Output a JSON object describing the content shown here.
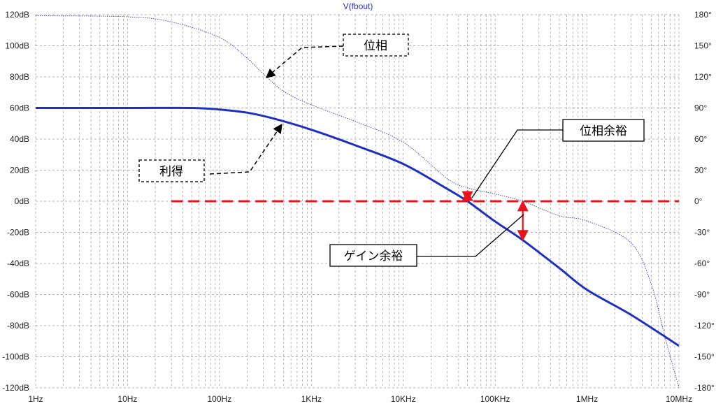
{
  "chart_data": {
    "type": "line",
    "title": "V(fbout)",
    "x_scale": "log",
    "xlim": [
      1,
      10000000
    ],
    "x_ticks": [
      {
        "value": 1,
        "label": "1Hz"
      },
      {
        "value": 10,
        "label": "10Hz"
      },
      {
        "value": 100,
        "label": "100Hz"
      },
      {
        "value": 1000,
        "label": "1KHz"
      },
      {
        "value": 10000,
        "label": "10KHz"
      },
      {
        "value": 100000,
        "label": "100KHz"
      },
      {
        "value": 1000000,
        "label": "1MHz"
      },
      {
        "value": 10000000,
        "label": "10MHz"
      }
    ],
    "ylim": [
      -120,
      120
    ],
    "y_ticks": [
      {
        "value": 120,
        "label": "120dB"
      },
      {
        "value": 100,
        "label": "100dB"
      },
      {
        "value": 80,
        "label": "80dB"
      },
      {
        "value": 60,
        "label": "60dB"
      },
      {
        "value": 40,
        "label": "40dB"
      },
      {
        "value": 20,
        "label": "20dB"
      },
      {
        "value": 0,
        "label": "0dB"
      },
      {
        "value": -20,
        "label": "-20dB"
      },
      {
        "value": -40,
        "label": "-40dB"
      },
      {
        "value": -60,
        "label": "-60dB"
      },
      {
        "value": -80,
        "label": "-80dB"
      },
      {
        "value": -100,
        "label": "-100dB"
      },
      {
        "value": -120,
        "label": "-120dB"
      }
    ],
    "y2lim": [
      -180,
      180
    ],
    "y2_ticks": [
      {
        "value": 180,
        "label": "180°"
      },
      {
        "value": 150,
        "label": "150°"
      },
      {
        "value": 120,
        "label": "120°"
      },
      {
        "value": 90,
        "label": "90°"
      },
      {
        "value": 60,
        "label": "60°"
      },
      {
        "value": 30,
        "label": "30°"
      },
      {
        "value": 0,
        "label": "0°"
      },
      {
        "value": -30,
        "label": "-30°"
      },
      {
        "value": -60,
        "label": "-60°"
      },
      {
        "value": -90,
        "label": "-90°"
      },
      {
        "value": -120,
        "label": "-120°"
      },
      {
        "value": -150,
        "label": "-150°"
      },
      {
        "value": -180,
        "label": "-180°"
      }
    ],
    "grid": true,
    "series": [
      {
        "axis": "left",
        "color": "#1f2fc0",
        "style": "solid",
        "x": [
          1,
          10,
          50,
          100,
          200,
          400,
          1000,
          3000,
          10000,
          30000,
          50000,
          100000,
          200000,
          500000,
          1000000,
          3000000,
          10000000
        ],
        "y": [
          60,
          60,
          60,
          59,
          57,
          53,
          46,
          36,
          24,
          8,
          0,
          -13,
          -25,
          -43,
          -57,
          -73,
          -93
        ]
      },
      {
        "axis": "right",
        "color": "#3a3acc",
        "style": "dotted",
        "x": [
          1,
          10,
          30,
          100,
          200,
          300,
          500,
          1000,
          3000,
          10000,
          30000,
          50000,
          100000,
          200000,
          500000,
          1000000,
          3000000,
          5000000,
          7000000,
          10000000
        ],
        "y": [
          179,
          178,
          173,
          158,
          138,
          123,
          106,
          93,
          77,
          57,
          22,
          13,
          7,
          0,
          -14,
          -19,
          -40,
          -80,
          -130,
          -180
        ]
      }
    ],
    "zero_line": {
      "value": 0,
      "x_start": 30,
      "color": "#e8141b",
      "style": "dashed"
    },
    "phase_margin_marker": {
      "x": 50000,
      "y_from": 0,
      "y_to": 10,
      "color": "#e8141b"
    },
    "gain_margin_marker": {
      "x": 200000,
      "y_from": 0,
      "y_to": -25,
      "color": "#e8141b"
    }
  },
  "annotations": {
    "phase": "位相",
    "gain": "利得",
    "phase_margin": "位相余裕",
    "gain_margin": "ゲイン余裕"
  }
}
